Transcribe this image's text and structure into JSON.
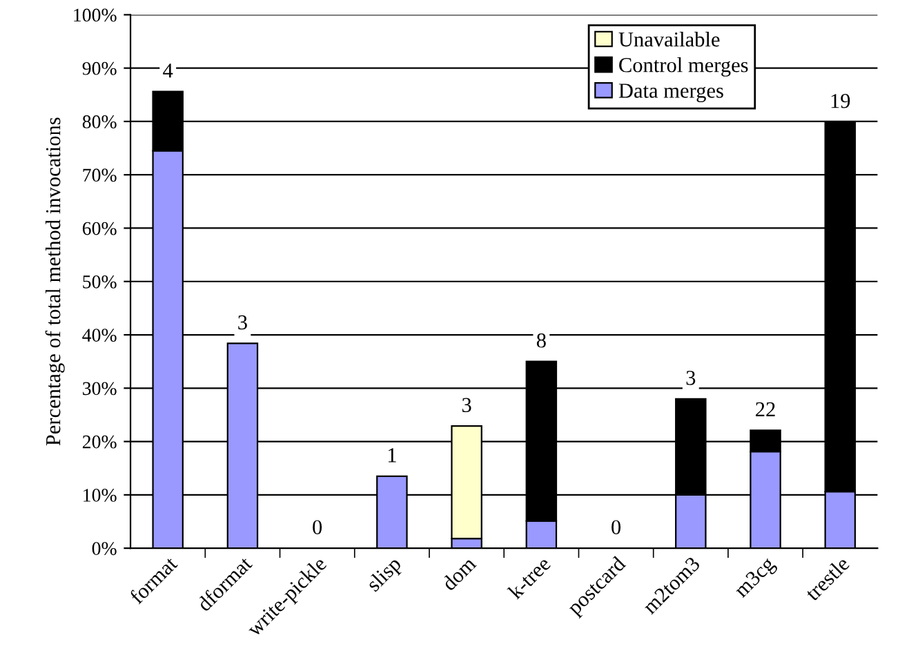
{
  "chart_data": {
    "type": "bar",
    "stacked": true,
    "ylabel": "Percentage of total method invocations",
    "categories": [
      "format",
      "dformat",
      "write-pickle",
      "slisp",
      "dom",
      "k-tree",
      "postcard",
      "m2tom3",
      "m3cg",
      "trestle"
    ],
    "series": [
      {
        "name": "Data merges",
        "color": "#9999ff",
        "values": [
          74.5,
          38.4,
          null,
          13.5,
          1.8,
          5.1,
          null,
          10,
          18.1,
          10.6
        ]
      },
      {
        "name": "Control merges",
        "color": "#000000",
        "values": [
          11.1,
          null,
          null,
          null,
          null,
          29.9,
          null,
          18,
          4,
          69.3
        ]
      },
      {
        "name": "Unavailable",
        "color": "#ffffcc",
        "values": [
          null,
          null,
          null,
          null,
          21.1,
          null,
          null,
          null,
          null,
          null
        ]
      }
    ],
    "annotations": [
      "4",
      "3",
      "0",
      "1",
      "3",
      "8",
      "0",
      "3",
      "22",
      "19"
    ],
    "ylim": [
      0,
      100
    ],
    "yticks": [
      {
        "value": 0,
        "label": "0%"
      },
      {
        "value": 10,
        "label": "10%"
      },
      {
        "value": 20,
        "label": "20%"
      },
      {
        "value": 30,
        "label": "30%"
      },
      {
        "value": 40,
        "label": "40%"
      },
      {
        "value": 50,
        "label": "50%"
      },
      {
        "value": 60,
        "label": "60%"
      },
      {
        "value": 70,
        "label": "70%"
      },
      {
        "value": 80,
        "label": "80%"
      },
      {
        "value": 90,
        "label": "90%"
      },
      {
        "value": 100,
        "label": "100%"
      }
    ],
    "grid": "y",
    "legend": "top right"
  }
}
